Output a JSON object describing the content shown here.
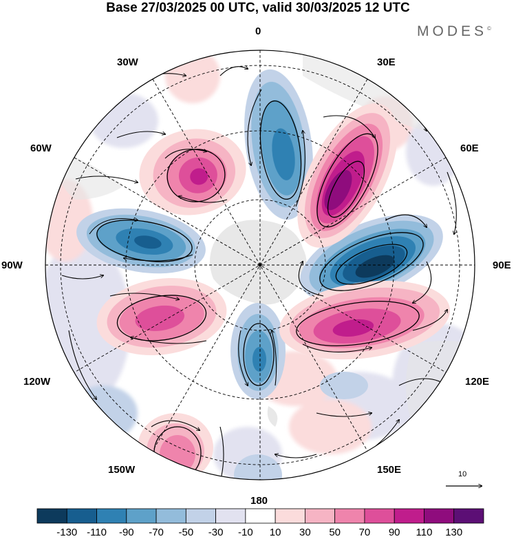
{
  "header": {
    "title": "Base 27/03/2025 00 UTC, valid 30/03/2025 12 UTC",
    "brand": "MODES"
  },
  "map": {
    "projection": "south-polar-stereographic",
    "longitude_labels": {
      "0": "0",
      "30E": "30E",
      "60E": "60E",
      "90E": "90E",
      "120E": "120E",
      "150E": "150E",
      "180": "180",
      "150W": "150W",
      "120W": "120W",
      "90W": "90W",
      "60W": "60W",
      "30W": "30W"
    },
    "reference_vector": {
      "label": "10"
    },
    "land_color": "#e6e6e6"
  },
  "colorbar": {
    "ticks": [
      "-130",
      "-110",
      "-90",
      "-70",
      "-50",
      "-30",
      "-10",
      "10",
      "30",
      "50",
      "70",
      "90",
      "110",
      "130"
    ],
    "colors": [
      "#0d3a5c",
      "#175e8f",
      "#2f81b3",
      "#5ea1c9",
      "#93bcdb",
      "#c2d2e8",
      "#e2e2f0",
      "#ffffff",
      "#fbdcdc",
      "#f6b4c4",
      "#ef84ac",
      "#de4f9a",
      "#c01d8c",
      "#8f0c7d",
      "#5c0f75"
    ]
  }
}
